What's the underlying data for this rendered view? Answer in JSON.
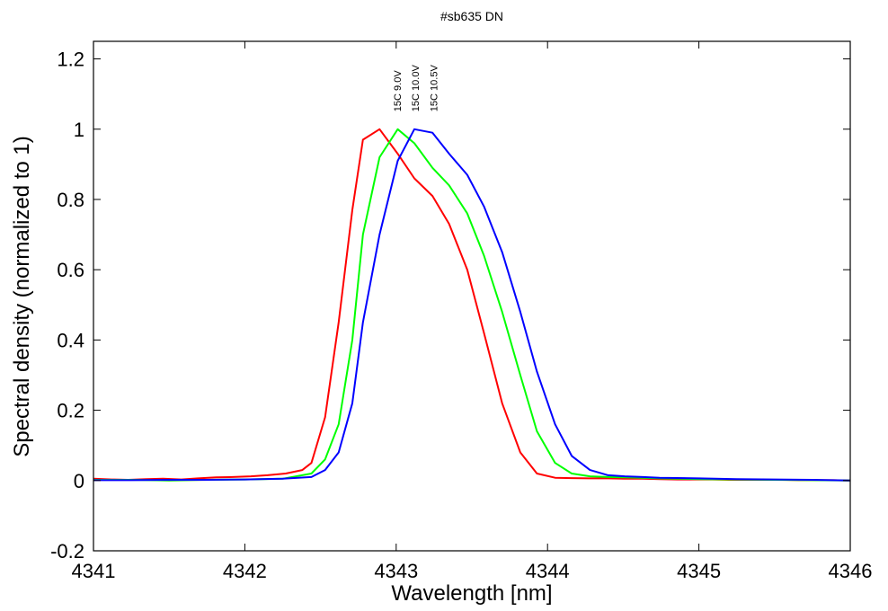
{
  "chart_data": {
    "type": "line",
    "title": "#sb635 DN",
    "xlabel": "Wavelength [nm]",
    "ylabel": "Spectral density (normalized to 1)",
    "xlim": [
      4341,
      4346
    ],
    "ylim": [
      -0.2,
      1.25
    ],
    "xticks": [
      4341,
      4342,
      4343,
      4344,
      4345,
      4346
    ],
    "xtick_labels": [
      "4341",
      "4342",
      "4343",
      "4344",
      "4345",
      "4346"
    ],
    "yticks": [
      -0.2,
      0,
      0.2,
      0.4,
      0.6,
      0.8,
      1,
      1.2
    ],
    "ytick_labels": [
      "-0.2",
      "0",
      "0.2",
      "0.4",
      "0.6",
      "0.8",
      "1",
      "1.2"
    ],
    "grid": false,
    "annotations": [
      {
        "text": "15C 9.0V",
        "x": 4343.03,
        "y": 1.05,
        "rotation": -90
      },
      {
        "text": "15C 10.0V",
        "x": 4343.15,
        "y": 1.05,
        "rotation": -90
      },
      {
        "text": "15C 10.5V",
        "x": 4343.27,
        "y": 1.05,
        "rotation": -90
      }
    ],
    "series": [
      {
        "color": "#ff0000",
        "x": [
          4341.0,
          4341.12,
          4341.23,
          4341.35,
          4341.46,
          4341.58,
          4341.69,
          4341.81,
          4341.92,
          4342.04,
          4342.15,
          4342.27,
          4342.38,
          4342.44,
          4342.53,
          4342.62,
          4342.71,
          4342.78,
          4342.89,
          4343.01,
          4343.12,
          4343.24,
          4343.35,
          4343.47,
          4343.58,
          4343.7,
          4343.82,
          4343.93,
          4344.05,
          4344.16,
          4344.28,
          4344.4,
          4344.51,
          4344.63,
          4344.74,
          4344.86,
          4344.97,
          4345.09,
          4345.2,
          4345.32,
          4345.43,
          4345.55,
          4345.66,
          4345.78,
          4345.89,
          4346.0
        ],
        "y": [
          0.005,
          0.003,
          0.002,
          0.004,
          0.005,
          0.003,
          0.006,
          0.009,
          0.01,
          0.012,
          0.015,
          0.02,
          0.03,
          0.05,
          0.18,
          0.45,
          0.77,
          0.97,
          1.0,
          0.93,
          0.86,
          0.81,
          0.73,
          0.6,
          0.42,
          0.22,
          0.08,
          0.02,
          0.008,
          0.007,
          0.006,
          0.006,
          0.005,
          0.005,
          0.004,
          0.003,
          0.003,
          0.003,
          0.002,
          0.002,
          0.002,
          0.002,
          0.001,
          0.001,
          0.001,
          0.0
        ]
      },
      {
        "color": "#00ff00",
        "x": [
          4341.0,
          4341.25,
          4341.5,
          4341.75,
          4342.0,
          4342.25,
          4342.44,
          4342.53,
          4342.62,
          4342.71,
          4342.78,
          4342.89,
          4343.01,
          4343.12,
          4343.24,
          4343.35,
          4343.47,
          4343.58,
          4343.7,
          4343.82,
          4343.93,
          4344.05,
          4344.16,
          4344.28,
          4344.4,
          4344.51,
          4344.63,
          4344.74,
          4345.0,
          4345.25,
          4345.5,
          4345.75,
          4346.0
        ],
        "y": [
          0.002,
          0.002,
          0.0,
          0.002,
          0.003,
          0.005,
          0.02,
          0.06,
          0.16,
          0.4,
          0.7,
          0.92,
          1.0,
          0.96,
          0.89,
          0.84,
          0.76,
          0.64,
          0.48,
          0.3,
          0.14,
          0.05,
          0.02,
          0.012,
          0.01,
          0.009,
          0.008,
          0.006,
          0.004,
          0.003,
          0.002,
          0.001,
          0.0
        ]
      },
      {
        "color": "#0000ff",
        "x": [
          4341.0,
          4341.25,
          4341.5,
          4341.75,
          4342.0,
          4342.25,
          4342.44,
          4342.53,
          4342.62,
          4342.71,
          4342.78,
          4342.89,
          4343.01,
          4343.12,
          4343.24,
          4343.35,
          4343.47,
          4343.58,
          4343.7,
          4343.82,
          4343.93,
          4344.05,
          4344.16,
          4344.28,
          4344.4,
          4344.51,
          4344.63,
          4344.74,
          4345.0,
          4345.25,
          4345.5,
          4345.75,
          4346.0
        ],
        "y": [
          0.001,
          0.001,
          0.002,
          0.002,
          0.003,
          0.005,
          0.01,
          0.03,
          0.08,
          0.22,
          0.45,
          0.7,
          0.91,
          1.0,
          0.99,
          0.93,
          0.87,
          0.78,
          0.65,
          0.48,
          0.31,
          0.16,
          0.07,
          0.03,
          0.015,
          0.012,
          0.01,
          0.008,
          0.006,
          0.004,
          0.003,
          0.002,
          0.0
        ]
      }
    ]
  }
}
